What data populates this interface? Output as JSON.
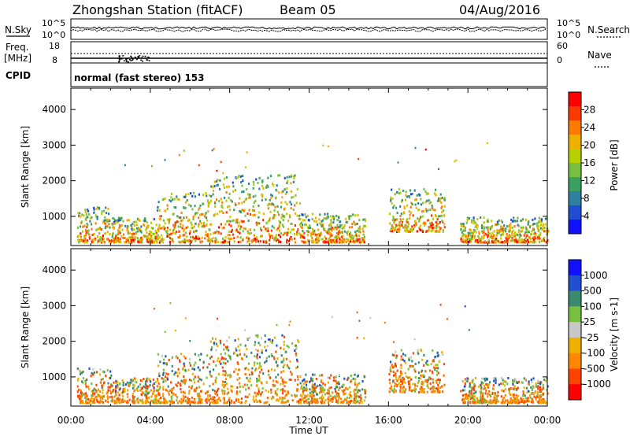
{
  "header": {
    "station": "Zhongshan Station (fitACF)",
    "beam": "Beam 05",
    "date": "04/Aug/2016"
  },
  "panels": {
    "nsky_label": "N.Sky",
    "nsky_ticks": [
      "10^5",
      "10^0"
    ],
    "nsearch_label": "N.Search",
    "nsearch_ticks": [
      "10^5",
      "10^0"
    ],
    "freq_label": "Freq.",
    "freq_unit": "[MHz]",
    "freq_ticks": [
      "18",
      "8"
    ],
    "nave_label": "Nave",
    "nave_ticks": [
      "60",
      "0"
    ],
    "cpid_label": "CPID",
    "cpid_text": "normal (fast stereo) 153"
  },
  "chart_data": [
    {
      "type": "heatmap",
      "title": "",
      "xlabel": "",
      "ylabel": "Slant Range [km]",
      "yticks": [
        1000,
        2000,
        3000,
        4000
      ],
      "ylim": [
        180,
        4600
      ],
      "xlim": [
        0,
        24
      ],
      "colorbar": {
        "label": "Power [dB]",
        "ticks": [
          "28",
          "24",
          "20",
          "16",
          "12",
          "8",
          "4"
        ],
        "colors": [
          "#ff0000",
          "#ff3a00",
          "#ff7a00",
          "#f0b000",
          "#b8d000",
          "#7ac040",
          "#3aa060",
          "#2e7fa0",
          "#1f4fd0",
          "#1010ff"
        ]
      },
      "echo_regions": [
        {
          "t0": 0.3,
          "t1": 2.0,
          "r0": 300,
          "r1": 1300
        },
        {
          "t0": 2.0,
          "t1": 4.3,
          "r0": 300,
          "r1": 1000
        },
        {
          "t0": 4.3,
          "t1": 7.0,
          "r0": 300,
          "r1": 1700
        },
        {
          "t0": 7.0,
          "t1": 11.5,
          "r0": 300,
          "r1": 2200
        },
        {
          "t0": 11.5,
          "t1": 14.8,
          "r0": 300,
          "r1": 1100
        },
        {
          "t0": 16.0,
          "t1": 18.8,
          "r0": 600,
          "r1": 1800
        },
        {
          "t0": 19.6,
          "t1": 24.0,
          "r0": 300,
          "r1": 1000
        }
      ]
    },
    {
      "type": "heatmap",
      "title": "",
      "xlabel": "Time UT",
      "ylabel": "Slant Range [km]",
      "yticks": [
        1000,
        2000,
        3000,
        4000
      ],
      "ylim": [
        180,
        4600
      ],
      "xlim": [
        0,
        24
      ],
      "xticks": [
        "00:00",
        "04:00",
        "08:00",
        "12:00",
        "16:00",
        "20:00",
        "00:00"
      ],
      "colorbar": {
        "label": "Velocity [m s-1]",
        "ticks": [
          "1000",
          "500",
          "100",
          "25",
          "-25",
          "-100",
          "-500",
          "-1000"
        ],
        "colors": [
          "#1010ff",
          "#2050d0",
          "#3a8a70",
          "#7ac040",
          "#c8c8c8",
          "#f0b000",
          "#ff8800",
          "#ff4400",
          "#ff0000"
        ]
      },
      "echo_regions": [
        {
          "t0": 0.3,
          "t1": 2.0,
          "r0": 300,
          "r1": 1300
        },
        {
          "t0": 2.0,
          "t1": 4.3,
          "r0": 300,
          "r1": 1000
        },
        {
          "t0": 4.3,
          "t1": 7.0,
          "r0": 300,
          "r1": 1700
        },
        {
          "t0": 7.0,
          "t1": 11.5,
          "r0": 300,
          "r1": 2200
        },
        {
          "t0": 11.5,
          "t1": 14.8,
          "r0": 300,
          "r1": 1100
        },
        {
          "t0": 16.0,
          "t1": 18.8,
          "r0": 600,
          "r1": 1800
        },
        {
          "t0": 19.6,
          "t1": 24.0,
          "r0": 300,
          "r1": 1000
        }
      ]
    }
  ]
}
